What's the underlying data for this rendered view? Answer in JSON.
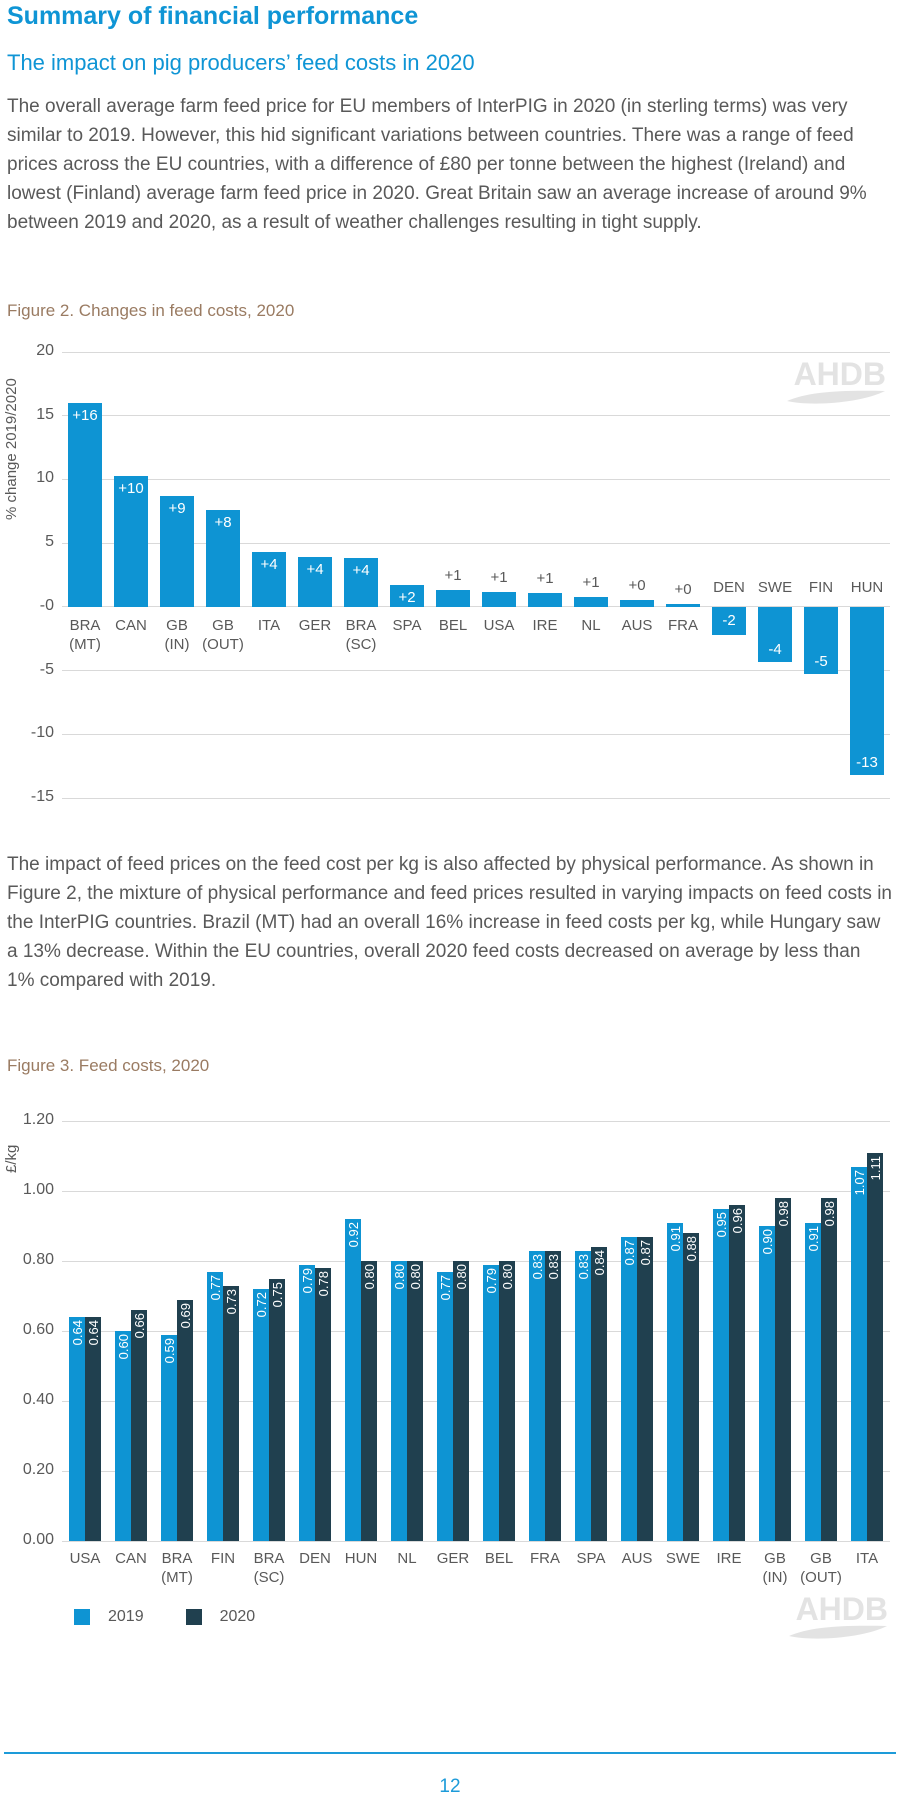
{
  "header": {
    "title": "Summary of financial performance",
    "subtitle": "The impact on pig producers’ feed costs in 2020"
  },
  "paragraphs": [
    "The overall average farm feed price for EU members of InterPIG in 2020 (in sterling terms) was very similar to 2019. However, this hid significant variations between countries. There was a range of feed prices across the EU countries, with a difference of £80 per tonne between the highest (Ireland) and lowest (Finland) average farm feed price in 2020. Great Britain saw an average increase of around 9% between 2019 and 2020, as a result of weather challenges resulting in tight supply.",
    "The impact of feed prices on the feed cost per kg is also affected by physical performance. As shown in Figure 2, the mixture of physical performance and feed prices resulted in varying impacts on feed costs in the InterPIG countries. Brazil (MT) had an overall 16% increase in feed costs per kg, while Hungary saw a 13% decrease. Within the EU countries, overall 2020 feed costs decreased on average by less than 1% compared with 2019."
  ],
  "figure2": {
    "caption": "Figure 2. Changes in feed costs, 2020",
    "watermark": "AHDB"
  },
  "figure3": {
    "caption": "Figure 3. Feed costs, 2020",
    "watermark": "AHDB"
  },
  "footer": {
    "page_number": "12"
  },
  "colors": {
    "heading_blue": "#0f95d5",
    "bar_blue_2019": "#0e94d3",
    "bar_navy_2020": "#20404f",
    "caption_brown": "#9a7b62",
    "text_gray": "#595959",
    "gridline_gray": "#d9d9d9",
    "watermark_gray": "#e3e3e3",
    "footer_blue": "#1d9bd9"
  },
  "chart_data": [
    {
      "id": "figure2",
      "type": "bar",
      "title": "Figure 2. Changes in feed costs, 2020",
      "xlabel": "",
      "ylabel": "% change 2019/2020",
      "ylim": [
        -15,
        20
      ],
      "grid": true,
      "legend_position": "none",
      "yticks": [
        {
          "label": "20",
          "value": 20
        },
        {
          "label": "15",
          "value": 15
        },
        {
          "label": "10",
          "value": 10
        },
        {
          "label": "5",
          "value": 5
        },
        {
          "label": "-0",
          "value": 0
        },
        {
          "label": "-5",
          "value": -5
        },
        {
          "label": "-10",
          "value": -10
        },
        {
          "label": "-15",
          "value": -15
        }
      ],
      "categories": [
        "BRA\n(MT)",
        "CAN",
        "GB\n(IN)",
        "GB\n(OUT)",
        "ITA",
        "GER",
        "BRA\n(SC)",
        "SPA",
        "BEL",
        "USA",
        "IRE",
        "NL",
        "AUS",
        "FRA",
        "DEN",
        "SWE",
        "FIN",
        "HUN"
      ],
      "values": [
        16,
        10.3,
        8.7,
        7.6,
        4.3,
        3.9,
        3.8,
        1.7,
        1.3,
        1.2,
        1.1,
        0.8,
        0.5,
        0.2,
        -2.2,
        -4.3,
        -5.3,
        -13.2
      ],
      "labels": [
        "+16",
        "+10",
        "+9",
        "+8",
        "+4",
        "+4",
        "+4",
        "+2",
        "+1",
        "+1",
        "+1",
        "+1",
        "+0",
        "+0",
        "-2",
        "-4",
        "-5",
        "-13"
      ],
      "label_pos": [
        "in-top",
        "in-top",
        "in-top",
        "in-top",
        "in-top",
        "in-top",
        "in-top",
        "in-top",
        "above",
        "above",
        "above",
        "above",
        "above",
        "above",
        "in-center",
        "in-bottom",
        "in-bottom",
        "in-bottom"
      ],
      "bar_color": "#0e94d3"
    },
    {
      "id": "figure3",
      "type": "bar",
      "title": "Figure 3. Feed costs, 2020",
      "xlabel": "",
      "ylabel": "£/kg",
      "ylim": [
        0,
        1.2
      ],
      "grid": true,
      "legend_position": "bottom-left",
      "yticks": [
        "1.20",
        "1.00",
        "0.80",
        "0.60",
        "0.40",
        "0.20",
        "0.00"
      ],
      "categories": [
        "USA",
        "CAN",
        "BRA\n(MT)",
        "FIN",
        "BRA\n(SC)",
        "DEN",
        "HUN",
        "NL",
        "GER",
        "BEL",
        "FRA",
        "SPA",
        "AUS",
        "SWE",
        "IRE",
        "GB\n(IN)",
        "GB\n(OUT)",
        "ITA"
      ],
      "series": [
        {
          "name": "2019",
          "color": "#0e94d3",
          "values": [
            0.64,
            0.6,
            0.59,
            0.77,
            0.72,
            0.79,
            0.92,
            0.8,
            0.77,
            0.79,
            0.83,
            0.83,
            0.87,
            0.91,
            0.95,
            0.9,
            0.91,
            1.07
          ]
        },
        {
          "name": "2020",
          "color": "#20404f",
          "values": [
            0.64,
            0.66,
            0.69,
            0.73,
            0.75,
            0.78,
            0.8,
            0.8,
            0.8,
            0.8,
            0.83,
            0.84,
            0.87,
            0.88,
            0.96,
            0.98,
            0.98,
            1.11
          ]
        }
      ]
    }
  ]
}
